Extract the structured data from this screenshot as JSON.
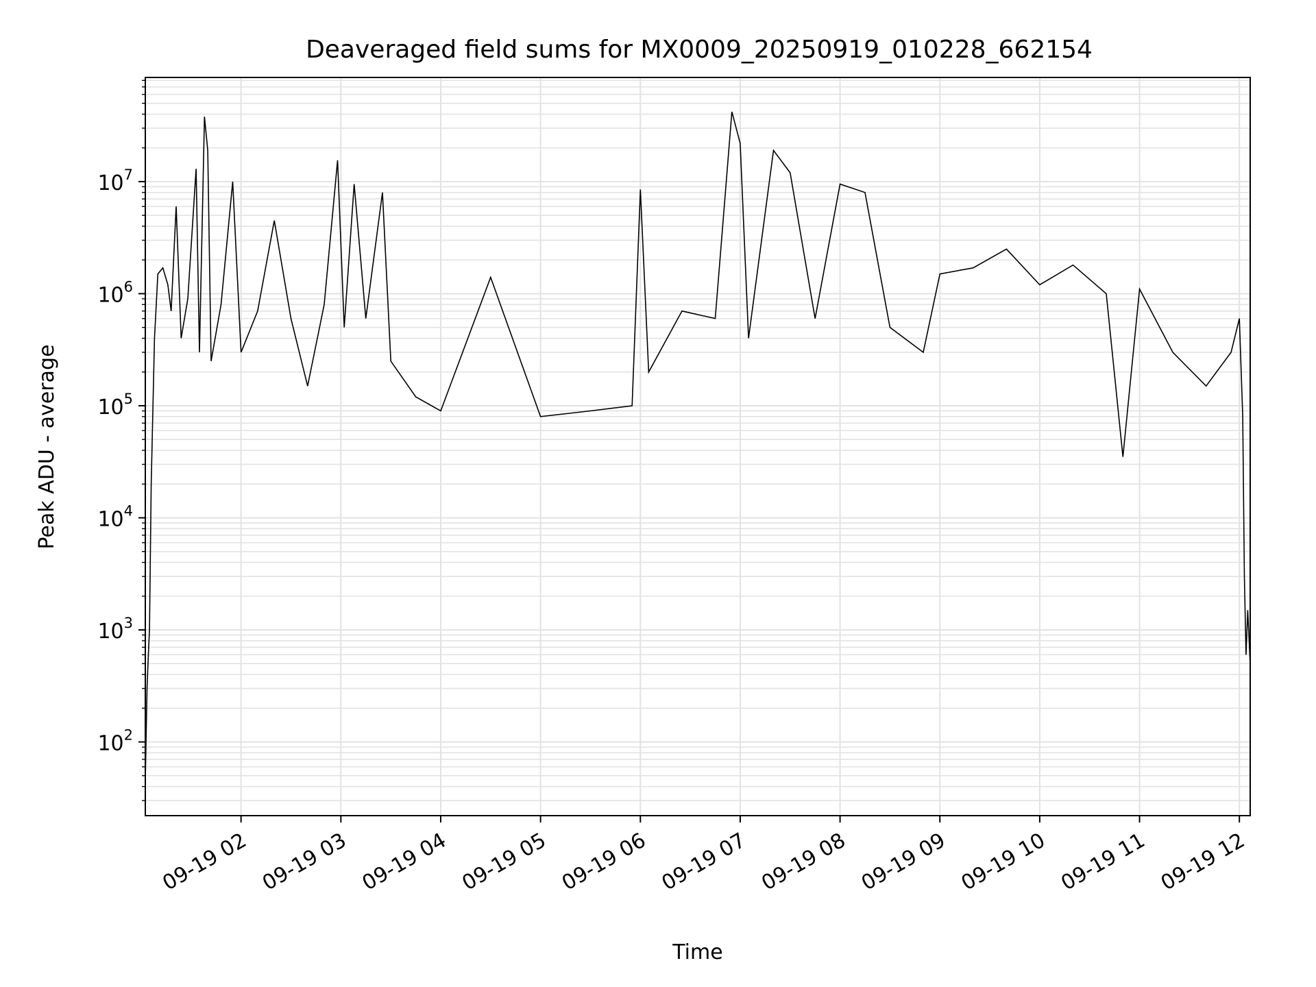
{
  "chart_data": {
    "type": "line",
    "title": "Deaveraged field sums for MX0009_20250919_010228_662154",
    "xlabel": "Time",
    "ylabel": "Peak ADU - average",
    "y_scale": "log",
    "ylim": [
      22,
      85000000.0
    ],
    "xlim": [
      "2025-09-19T01:02:28",
      "2025-09-19T12:06:30"
    ],
    "grid": true,
    "line_color": "#000000",
    "grid_color": "#e2e2e2",
    "x_ticks": [
      {
        "t": "2025-09-19T02:00",
        "label": "09-19 02"
      },
      {
        "t": "2025-09-19T03:00",
        "label": "09-19 03"
      },
      {
        "t": "2025-09-19T04:00",
        "label": "09-19 04"
      },
      {
        "t": "2025-09-19T05:00",
        "label": "09-19 05"
      },
      {
        "t": "2025-09-19T06:00",
        "label": "09-19 06"
      },
      {
        "t": "2025-09-19T07:00",
        "label": "09-19 07"
      },
      {
        "t": "2025-09-19T08:00",
        "label": "09-19 08"
      },
      {
        "t": "2025-09-19T09:00",
        "label": "09-19 09"
      },
      {
        "t": "2025-09-19T10:00",
        "label": "09-19 10"
      },
      {
        "t": "2025-09-19T11:00",
        "label": "09-19 11"
      },
      {
        "t": "2025-09-19T12:00",
        "label": "09-19 12"
      }
    ],
    "y_ticks": [
      {
        "value": 100,
        "base": "10",
        "exp": "2"
      },
      {
        "value": 1000,
        "base": "10",
        "exp": "3"
      },
      {
        "value": 10000,
        "base": "10",
        "exp": "4"
      },
      {
        "value": 100000,
        "base": "10",
        "exp": "5"
      },
      {
        "value": 1000000,
        "base": "10",
        "exp": "6"
      },
      {
        "value": 10000000,
        "base": "10",
        "exp": "7"
      }
    ],
    "series": [
      {
        "points": [
          [
            "2025-09-19T01:02:28",
            45
          ],
          [
            "2025-09-19T01:03:30",
            300
          ],
          [
            "2025-09-19T01:04:30",
            700
          ],
          [
            "2025-09-19T01:05:00",
            1000
          ],
          [
            "2025-09-19T01:06:00",
            20000
          ],
          [
            "2025-09-19T01:08:00",
            400000
          ],
          [
            "2025-09-19T01:10:00",
            1500000
          ],
          [
            "2025-09-19T01:13:00",
            1700000
          ],
          [
            "2025-09-19T01:16:00",
            1200000
          ],
          [
            "2025-09-19T01:18:00",
            700000
          ],
          [
            "2025-09-19T01:21:00",
            6000000
          ],
          [
            "2025-09-19T01:24:00",
            400000
          ],
          [
            "2025-09-19T01:28:00",
            900000
          ],
          [
            "2025-09-19T01:33:00",
            13000000
          ],
          [
            "2025-09-19T01:35:00",
            300000
          ],
          [
            "2025-09-19T01:38:00",
            38000000
          ],
          [
            "2025-09-19T01:40:00",
            19000000
          ],
          [
            "2025-09-19T01:42:00",
            250000
          ],
          [
            "2025-09-19T01:48:00",
            800000
          ],
          [
            "2025-09-19T01:55:00",
            10000000
          ],
          [
            "2025-09-19T02:00:00",
            300000
          ],
          [
            "2025-09-19T02:10:00",
            700000
          ],
          [
            "2025-09-19T02:20:00",
            4500000
          ],
          [
            "2025-09-19T02:30:00",
            600000
          ],
          [
            "2025-09-19T02:40:00",
            150000
          ],
          [
            "2025-09-19T02:50:00",
            800000
          ],
          [
            "2025-09-19T02:58:00",
            15500000
          ],
          [
            "2025-09-19T03:02:00",
            500000
          ],
          [
            "2025-09-19T03:08:00",
            9500000
          ],
          [
            "2025-09-19T03:15:00",
            600000
          ],
          [
            "2025-09-19T03:25:00",
            8000000
          ],
          [
            "2025-09-19T03:30:00",
            250000
          ],
          [
            "2025-09-19T03:45:00",
            120000
          ],
          [
            "2025-09-19T04:00:00",
            90000
          ],
          [
            "2025-09-19T04:30:00",
            1400000
          ],
          [
            "2025-09-19T05:00:00",
            80000
          ],
          [
            "2025-09-19T05:30:00",
            90000
          ],
          [
            "2025-09-19T05:55:00",
            100000
          ],
          [
            "2025-09-19T06:00:00",
            8500000
          ],
          [
            "2025-09-19T06:05:00",
            200000
          ],
          [
            "2025-09-19T06:25:00",
            700000
          ],
          [
            "2025-09-19T06:45:00",
            600000
          ],
          [
            "2025-09-19T06:55:00",
            42000000
          ],
          [
            "2025-09-19T07:00:00",
            22000000
          ],
          [
            "2025-09-19T07:05:00",
            400000
          ],
          [
            "2025-09-19T07:20:00",
            19000000
          ],
          [
            "2025-09-19T07:30:00",
            12000000
          ],
          [
            "2025-09-19T07:45:00",
            600000
          ],
          [
            "2025-09-19T08:00:00",
            9500000
          ],
          [
            "2025-09-19T08:15:00",
            8000000
          ],
          [
            "2025-09-19T08:30:00",
            500000
          ],
          [
            "2025-09-19T08:50:00",
            300000
          ],
          [
            "2025-09-19T09:00:00",
            1500000
          ],
          [
            "2025-09-19T09:20:00",
            1700000
          ],
          [
            "2025-09-19T09:40:00",
            2500000
          ],
          [
            "2025-09-19T10:00:00",
            1200000
          ],
          [
            "2025-09-19T10:20:00",
            1800000
          ],
          [
            "2025-09-19T10:40:00",
            1000000
          ],
          [
            "2025-09-19T10:50:00",
            35000
          ],
          [
            "2025-09-19T11:00:00",
            1100000
          ],
          [
            "2025-09-19T11:20:00",
            300000
          ],
          [
            "2025-09-19T11:40:00",
            150000
          ],
          [
            "2025-09-19T11:55:00",
            300000
          ],
          [
            "2025-09-19T12:00:00",
            600000
          ],
          [
            "2025-09-19T12:02:00",
            80000
          ],
          [
            "2025-09-19T12:03:00",
            3000
          ],
          [
            "2025-09-19T12:04:00",
            600
          ],
          [
            "2025-09-19T12:05:00",
            1500
          ],
          [
            "2025-09-19T12:06:30",
            500
          ]
        ]
      }
    ]
  }
}
